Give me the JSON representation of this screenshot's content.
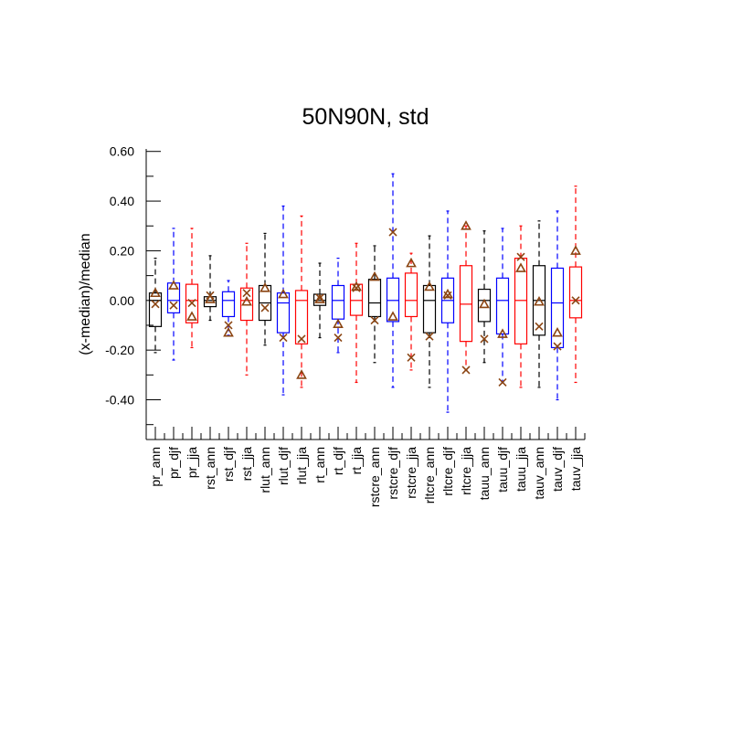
{
  "chart_data": {
    "type": "boxplot",
    "title": "50N90N, std",
    "xlabel": "",
    "ylabel": "(x-median)/median",
    "ylim": [
      -0.56,
      0.61
    ],
    "yticks": [
      -0.4,
      -0.2,
      0.0,
      0.2,
      0.4,
      0.6
    ],
    "ytick_labels": [
      "-0.40",
      "-0.20",
      "0.00",
      "0.20",
      "0.40",
      "0.60"
    ],
    "colors": {
      "black": "#000000",
      "blue": "#0000ff",
      "red": "#ff0000",
      "marker": "#8b4513"
    },
    "categories": [
      "pr_ann",
      "pr_djf",
      "pr_jja",
      "rst_ann",
      "rst_djf",
      "rst_jja",
      "rlut_ann",
      "rlut_djf",
      "rlut_jja",
      "rt_ann",
      "rt_djf",
      "rt_jja",
      "rstcre_ann",
      "rstcre_djf",
      "rstcre_jja",
      "rltcre_ann",
      "rltcre_djf",
      "rltcre_jja",
      "tauu_ann",
      "tauu_djf",
      "tauu_jja",
      "tauv_ann",
      "tauv_djf",
      "tauv_jja"
    ],
    "boxes": [
      {
        "name": "pr_ann",
        "color": "black",
        "whislo": -0.21,
        "q1": -0.105,
        "med": 0.0,
        "q3": 0.03,
        "whishi": 0.17,
        "tri": 0.03,
        "cross": -0.015
      },
      {
        "name": "pr_djf",
        "color": "blue",
        "whislo": -0.24,
        "q1": -0.05,
        "med": 0.0,
        "q3": 0.07,
        "whishi": 0.29,
        "tri": 0.06,
        "cross": -0.02
      },
      {
        "name": "pr_jja",
        "color": "red",
        "whislo": -0.19,
        "q1": -0.09,
        "med": 0.0,
        "q3": 0.065,
        "whishi": 0.29,
        "tri": -0.065,
        "cross": -0.01
      },
      {
        "name": "rst_ann",
        "color": "black",
        "whislo": -0.08,
        "q1": -0.025,
        "med": 0.0,
        "q3": 0.015,
        "whishi": 0.18,
        "tri": 0.005,
        "cross": 0.02
      },
      {
        "name": "rst_djf",
        "color": "blue",
        "whislo": -0.14,
        "q1": -0.065,
        "med": 0.0,
        "q3": 0.035,
        "whishi": 0.08,
        "tri": -0.13,
        "cross": -0.1
      },
      {
        "name": "rst_jja",
        "color": "red",
        "whislo": -0.3,
        "q1": -0.08,
        "med": 0.0,
        "q3": 0.05,
        "whishi": 0.23,
        "tri": -0.005,
        "cross": 0.03
      },
      {
        "name": "rlut_ann",
        "color": "black",
        "whislo": -0.18,
        "q1": -0.08,
        "med": -0.01,
        "q3": 0.06,
        "whishi": 0.27,
        "tri": 0.05,
        "cross": -0.03
      },
      {
        "name": "rlut_djf",
        "color": "blue",
        "whislo": -0.38,
        "q1": -0.13,
        "med": -0.01,
        "q3": 0.03,
        "whishi": 0.38,
        "tri": 0.025,
        "cross": -0.15
      },
      {
        "name": "rlut_jja",
        "color": "red",
        "whislo": -0.35,
        "q1": -0.175,
        "med": 0.0,
        "q3": 0.04,
        "whishi": 0.34,
        "tri": -0.3,
        "cross": -0.155
      },
      {
        "name": "rt_ann",
        "color": "black",
        "whislo": -0.15,
        "q1": -0.02,
        "med": 0.0,
        "q3": 0.025,
        "whishi": 0.15,
        "tri": 0.005,
        "cross": 0.01
      },
      {
        "name": "rt_djf",
        "color": "blue",
        "whislo": -0.21,
        "q1": -0.075,
        "med": 0.0,
        "q3": 0.06,
        "whishi": 0.17,
        "tri": -0.095,
        "cross": -0.15
      },
      {
        "name": "rt_jja",
        "color": "red",
        "whislo": -0.33,
        "q1": -0.06,
        "med": 0.0,
        "q3": 0.065,
        "whishi": 0.23,
        "tri": 0.055,
        "cross": 0.05
      },
      {
        "name": "rstcre_ann",
        "color": "black",
        "whislo": -0.25,
        "q1": -0.065,
        "med": -0.01,
        "q3": 0.085,
        "whishi": 0.22,
        "tri": 0.095,
        "cross": -0.08
      },
      {
        "name": "rstcre_djf",
        "color": "blue",
        "whislo": -0.35,
        "q1": -0.085,
        "med": 0.0,
        "q3": 0.09,
        "whishi": 0.51,
        "tri": -0.065,
        "cross": 0.275
      },
      {
        "name": "rstcre_jja",
        "color": "red",
        "whislo": -0.28,
        "q1": -0.065,
        "med": 0.0,
        "q3": 0.11,
        "whishi": 0.19,
        "tri": 0.15,
        "cross": -0.23
      },
      {
        "name": "rltcre_ann",
        "color": "black",
        "whislo": -0.35,
        "q1": -0.13,
        "med": 0.0,
        "q3": 0.06,
        "whishi": 0.26,
        "tri": 0.055,
        "cross": -0.145
      },
      {
        "name": "rltcre_djf",
        "color": "blue",
        "whislo": -0.45,
        "q1": -0.09,
        "med": 0.0,
        "q3": 0.09,
        "whishi": 0.36,
        "tri": 0.025,
        "cross": 0.02
      },
      {
        "name": "rltcre_jja",
        "color": "red",
        "whislo": -0.28,
        "q1": -0.165,
        "med": -0.015,
        "q3": 0.14,
        "whishi": 0.3,
        "tri": 0.3,
        "cross": -0.28
      },
      {
        "name": "tauu_ann",
        "color": "black",
        "whislo": -0.25,
        "q1": -0.085,
        "med": 0.0,
        "q3": 0.045,
        "whishi": 0.28,
        "tri": -0.015,
        "cross": -0.155
      },
      {
        "name": "tauu_djf",
        "color": "blue",
        "whislo": -0.33,
        "q1": -0.135,
        "med": 0.0,
        "q3": 0.09,
        "whishi": 0.29,
        "tri": -0.135,
        "cross": -0.33
      },
      {
        "name": "tauu_jja",
        "color": "red",
        "whislo": -0.35,
        "q1": -0.175,
        "med": 0.0,
        "q3": 0.17,
        "whishi": 0.3,
        "tri": 0.13,
        "cross": 0.175
      },
      {
        "name": "tauv_ann",
        "color": "black",
        "whislo": -0.35,
        "q1": -0.14,
        "med": 0.0,
        "q3": 0.14,
        "whishi": 0.32,
        "tri": -0.005,
        "cross": -0.105
      },
      {
        "name": "tauv_djf",
        "color": "blue",
        "whislo": -0.4,
        "q1": -0.19,
        "med": -0.01,
        "q3": 0.13,
        "whishi": 0.36,
        "tri": -0.13,
        "cross": -0.185
      },
      {
        "name": "tauv_jja",
        "color": "red",
        "whislo": -0.33,
        "q1": -0.07,
        "med": 0.0,
        "q3": 0.135,
        "whishi": 0.46,
        "tri": 0.2,
        "cross": 0.0
      }
    ]
  }
}
